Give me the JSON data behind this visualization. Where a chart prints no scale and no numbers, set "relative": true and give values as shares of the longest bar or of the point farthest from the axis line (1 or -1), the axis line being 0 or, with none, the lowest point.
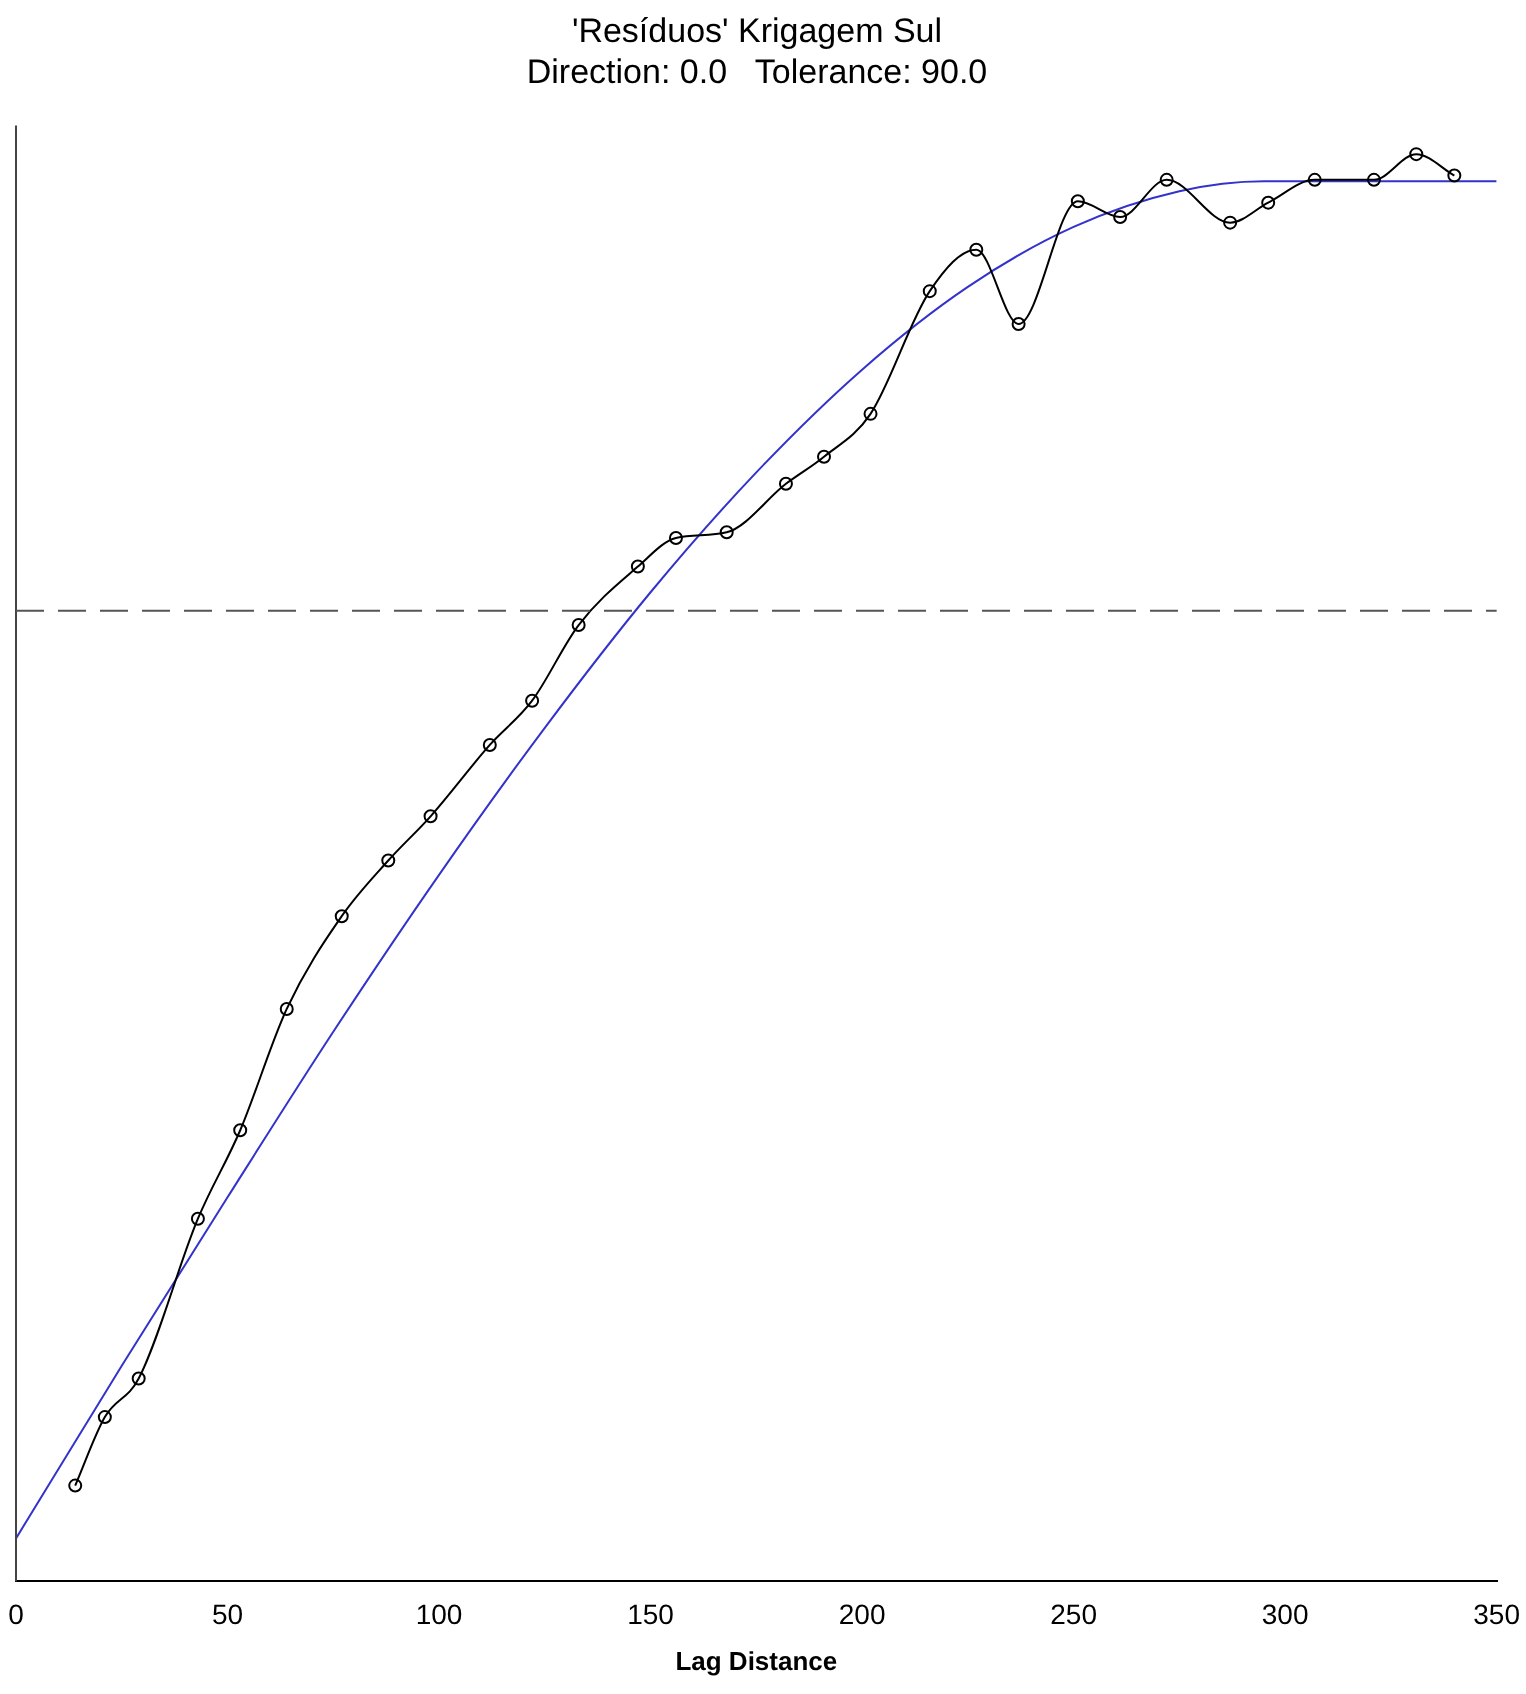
{
  "chart_data": {
    "type": "line",
    "title": "'Resíduos' Krigagem Sul",
    "subtitle": "Direction: 0.0   Tolerance: 90.0",
    "xlabel": "Lag Distance",
    "xlim": [
      0,
      350
    ],
    "xticks": [
      0,
      50,
      100,
      150,
      200,
      250,
      300,
      350
    ],
    "relative": true,
    "tick_labels": "x",
    "grid": false,
    "legend": false,
    "series": [
      {
        "color": "#000000",
        "marker": "circle",
        "x": [
          14,
          21,
          29,
          43,
          53,
          64,
          77,
          88,
          98,
          112,
          122,
          133,
          147,
          156,
          168,
          182,
          191,
          202,
          216,
          227,
          237,
          251,
          261,
          272,
          287,
          296,
          307,
          321,
          331,
          340
        ],
        "values": [
          0.067,
          0.115,
          0.142,
          0.254,
          0.316,
          0.401,
          0.466,
          0.505,
          0.536,
          0.586,
          0.617,
          0.67,
          0.711,
          0.731,
          0.735,
          0.769,
          0.788,
          0.818,
          0.904,
          0.933,
          0.881,
          0.967,
          0.956,
          0.982,
          0.952,
          0.966,
          0.982,
          0.982,
          1,
          0.985
        ]
      },
      {
        "color": "#3333cc",
        "marker": "none",
        "x": [
          0,
          25,
          50,
          75,
          100,
          125,
          150,
          175,
          200,
          225,
          250,
          275,
          295,
          350
        ],
        "values": [
          0.03,
          0.151,
          0.269,
          0.385,
          0.495,
          0.598,
          0.693,
          0.777,
          0.849,
          0.907,
          0.949,
          0.974,
          0.981,
          0.981
        ]
      }
    ],
    "ref_lines": [
      {
        "axis": "y",
        "value": 0.68,
        "color": "#555555",
        "line_style": "dashed"
      }
    ]
  }
}
